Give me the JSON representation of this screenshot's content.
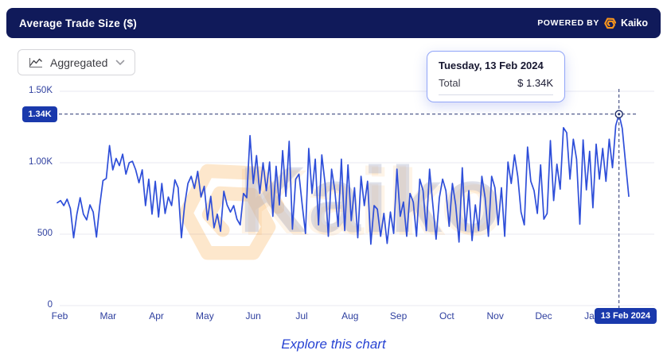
{
  "header": {
    "title": "Average Trade Size ($)",
    "powered_by": "POWERED BY",
    "brand": "Kaiko"
  },
  "controls": {
    "aggregation_value": "Aggregated"
  },
  "tooltip": {
    "title": "Tuesday, 13 Feb 2024",
    "row_label": "Total",
    "row_value": "$ 1.34K"
  },
  "crosshair": {
    "y_badge_label": "1.34K",
    "x_badge_label": "13 Feb 2024",
    "value": 1340,
    "date": "Tuesday, 13 Feb 2024"
  },
  "watermark": {
    "text": "Kaiko"
  },
  "footer": {
    "link": "Explore this chart"
  },
  "colors": {
    "header_bg": "#101a5a",
    "line": "#2e4ed9",
    "axis_text": "#2e3f9f",
    "badge_bg": "#1a39ac",
    "crosshair": "#273470",
    "brand_orange": "#f7941d",
    "grid": "#e9eaf2"
  },
  "chart_data": {
    "type": "line",
    "title": "Average Trade Size ($)",
    "x_months": [
      "Feb",
      "Mar",
      "Apr",
      "May",
      "Jun",
      "Jul",
      "Aug",
      "Sep",
      "Oct",
      "Nov",
      "Dec",
      "Jan"
    ],
    "x_range_note": "daily series, Feb 2023 - mid Feb 2024",
    "ylim": [
      0,
      1500
    ],
    "y_ticks": [
      {
        "label": "0",
        "value": 0
      },
      {
        "label": "500",
        "value": 500
      },
      {
        "label": "1.00K",
        "value": 1000
      },
      {
        "label": "1.50K",
        "value": 1500
      }
    ],
    "grid": true,
    "legend": false,
    "highlight": {
      "date": "13 Feb 2024",
      "value": 1340,
      "label": "1.34K"
    },
    "series": [
      {
        "name": "Total",
        "color": "#2e4ed9",
        "values": [
          720,
          735,
          700,
          745,
          680,
          475,
          640,
          755,
          640,
          600,
          705,
          655,
          480,
          700,
          875,
          890,
          1120,
          950,
          1030,
          980,
          1060,
          920,
          1000,
          1010,
          950,
          860,
          950,
          700,
          885,
          640,
          870,
          620,
          855,
          645,
          760,
          700,
          880,
          825,
          475,
          705,
          855,
          905,
          820,
          940,
          760,
          835,
          600,
          765,
          545,
          640,
          520,
          800,
          705,
          655,
          700,
          605,
          565,
          785,
          755,
          1190,
          855,
          1050,
          785,
          1000,
          805,
          1005,
          625,
          975,
          705,
          1085,
          765,
          1150,
          535,
          885,
          920,
          705,
          505,
          1100,
          785,
          1025,
          565,
          1055,
          855,
          485,
          955,
          805,
          555,
          1025,
          525,
          985,
          595,
          825,
          475,
          905,
          700,
          870,
          430,
          700,
          675,
          485,
          645,
          435,
          655,
          505,
          955,
          625,
          725,
          485,
          785,
          725,
          485,
          885,
          805,
          525,
          955,
          705,
          465,
          755,
          885,
          805,
          555,
          855,
          705,
          445,
          965,
          525,
          805,
          455,
          705,
          525,
          905,
          755,
          485,
          905,
          825,
          565,
          825,
          485,
          1005,
          855,
          1055,
          905,
          655,
          565,
          1110,
          870,
          805,
          645,
          985,
          605,
          645,
          1155,
          735,
          990,
          815,
          1245,
          1210,
          885,
          1165,
          1025,
          570,
          1160,
          810,
          1080,
          685,
          1130,
          885,
          1100,
          870,
          1165,
          965,
          1260,
          1340,
          1240,
          1000,
          765
        ]
      }
    ]
  }
}
